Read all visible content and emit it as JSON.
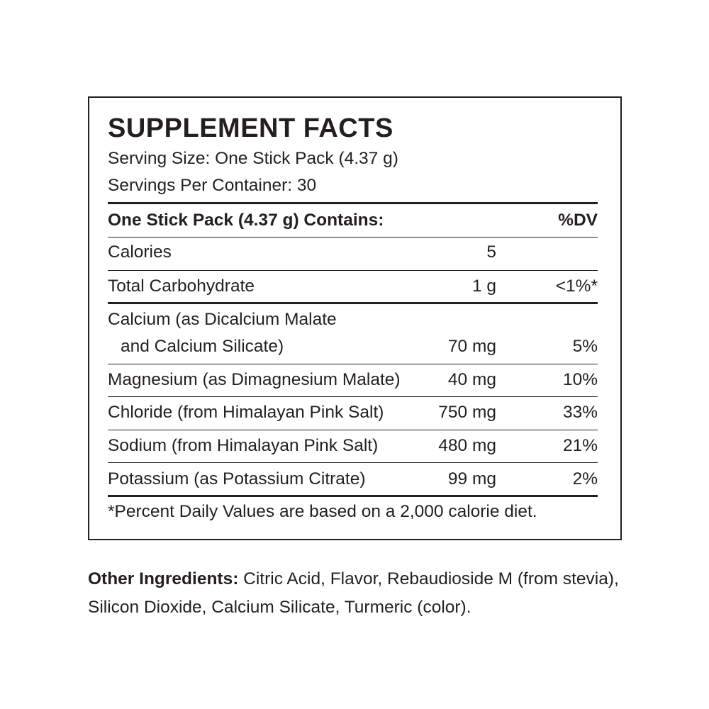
{
  "panel": {
    "title": "SUPPLEMENT FACTS",
    "serving_size": "Serving Size: One Stick Pack (4.37 g)",
    "servings_per_container": "Servings Per Container: 30",
    "header": {
      "label": "One Stick Pack (4.37 g) Contains:",
      "dv": "%DV"
    },
    "rows": [
      {
        "name": "Calories",
        "amount": "5",
        "dv": ""
      },
      {
        "name": "Total Carbohydrate",
        "amount": "1 g",
        "dv": "<1%*"
      },
      {
        "name": "Calcium (as Dicalcium Malate",
        "name2": "and Calcium Silicate)",
        "amount": "70 mg",
        "dv": "5%"
      },
      {
        "name": "Magnesium (as Dimagnesium Malate)",
        "amount": "40 mg",
        "dv": "10%"
      },
      {
        "name": "Chloride (from Himalayan Pink Salt)",
        "amount": "750 mg",
        "dv": "33%"
      },
      {
        "name": "Sodium (from Himalayan Pink Salt)",
        "amount": "480 mg",
        "dv": "21%"
      },
      {
        "name": "Potassium (as Potassium Citrate)",
        "amount": "99 mg",
        "dv": "2%"
      }
    ],
    "footnote": "*Percent Daily Values are based on a 2,000 calorie diet."
  },
  "other_ingredients": {
    "label": "Other Ingredients:",
    "text": " Citric Acid, Flavor, Rebaudioside M (from stevia), Silicon Dioxide, Calcium Silicate, Turmeric (color)."
  }
}
